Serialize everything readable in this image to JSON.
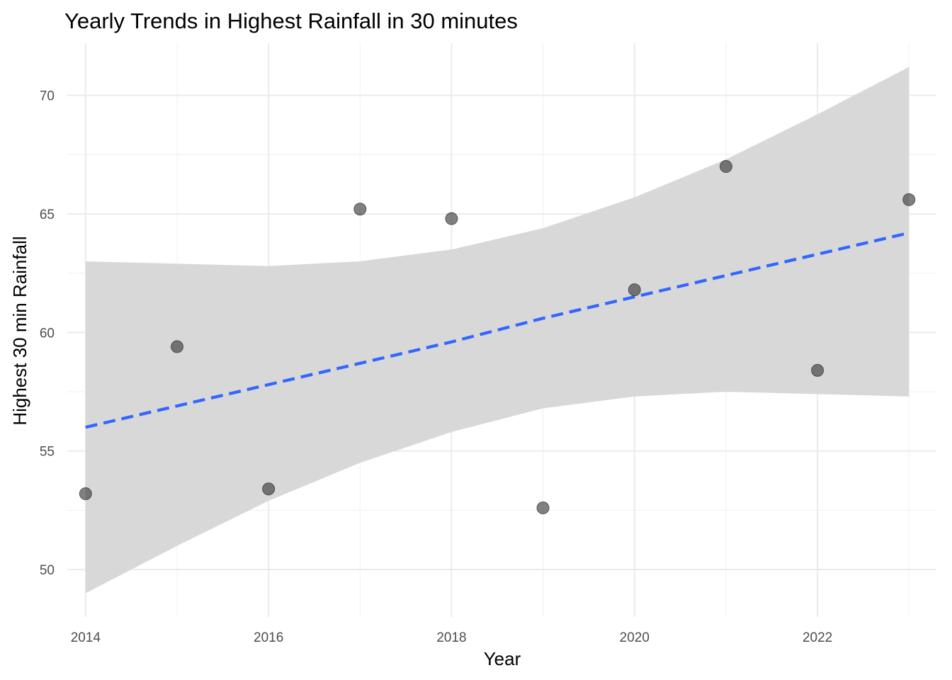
{
  "chart_data": {
    "type": "scatter",
    "title": "Yearly Trends in Highest Rainfall in 30 minutes",
    "xlabel": "Year",
    "ylabel": "Highest 30 min Rainfall",
    "xlim": [
      2013.8,
      2023.3
    ],
    "ylim": [
      48.0,
      72.2
    ],
    "x_ticks": [
      2014,
      2016,
      2018,
      2020,
      2022
    ],
    "x_tick_labels": [
      "2014",
      "2016",
      "2018",
      "2020",
      "2022"
    ],
    "x_minor_ticks": [
      2015,
      2017,
      2019,
      2021,
      2023
    ],
    "y_ticks": [
      50,
      55,
      60,
      65,
      70
    ],
    "y_tick_labels": [
      "50",
      "55",
      "60",
      "65",
      "70"
    ],
    "y_minor_ticks": [
      52.5,
      57.5,
      62.5,
      67.5
    ],
    "grid": true,
    "legend": "none",
    "points": {
      "x": [
        2014,
        2015,
        2016,
        2017,
        2018,
        2019,
        2020,
        2021,
        2022,
        2023
      ],
      "y": [
        53.2,
        59.4,
        53.4,
        65.2,
        64.8,
        52.6,
        61.8,
        67.0,
        58.4,
        65.6
      ],
      "color": "#333333"
    },
    "trend": {
      "method": "loess",
      "x": [
        2014,
        2015,
        2016,
        2017,
        2018,
        2019,
        2020,
        2021,
        2022,
        2023
      ],
      "y": [
        56.0,
        56.9,
        57.8,
        58.7,
        59.6,
        60.6,
        61.5,
        62.4,
        63.3,
        64.2
      ],
      "color": "#3366ff",
      "line_style": "dashed"
    },
    "confidence_band": {
      "x": [
        2014,
        2015,
        2016,
        2017,
        2018,
        2019,
        2020,
        2021,
        2022,
        2023
      ],
      "lower": [
        49.0,
        51.0,
        52.9,
        54.5,
        55.8,
        56.8,
        57.3,
        57.5,
        57.4,
        57.3
      ],
      "upper": [
        63.0,
        62.9,
        62.8,
        63.0,
        63.5,
        64.4,
        65.7,
        67.3,
        69.2,
        71.2
      ],
      "color": "#d6d6d6"
    }
  }
}
